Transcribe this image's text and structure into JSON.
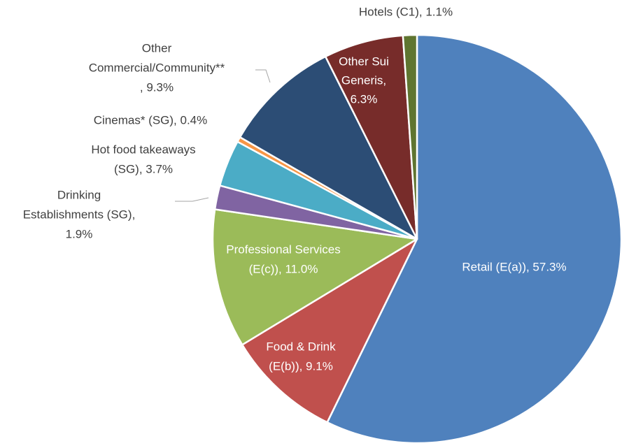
{
  "chart_data": {
    "type": "pie",
    "values": [
      57.3,
      9.1,
      11.0,
      1.9,
      3.7,
      0.4,
      9.3,
      6.3,
      1.1
    ],
    "labels": [
      [
        "Retail (E(a)), 57.3%"
      ],
      [
        "Food & Drink",
        "(E(b)), 9.1%"
      ],
      [
        "Professional Services",
        "(E(c)), 11.0%"
      ],
      [
        "Drinking",
        "Establishments (SG),",
        "1.9%"
      ],
      [
        "Hot food takeaways",
        "(SG), 3.7%"
      ],
      [
        "Cinemas* (SG), 0.4%"
      ],
      [
        "Other",
        "Commercial/Community**",
        ", 9.3%"
      ],
      [
        "Other Sui",
        "Generis,",
        "6.3%"
      ],
      [
        "Hotels (C1), 1.1%"
      ]
    ],
    "colors": [
      "#4f81bd",
      "#c0504d",
      "#9bbb59",
      "#8064a2",
      "#4bacc6",
      "#f79646",
      "#2c4d75",
      "#772c2a",
      "#5f7530"
    ]
  }
}
